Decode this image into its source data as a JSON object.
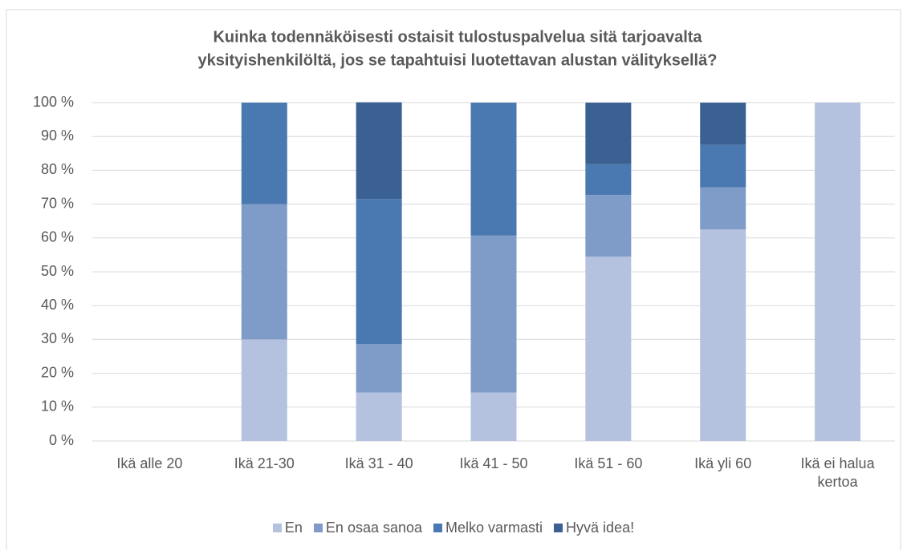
{
  "chart_data": {
    "type": "stacked_bar",
    "title": [
      "Kuinka todennäköisesti ostaisit tulostuspalvelua sitä tarjoavalta",
      "yksityishenkilöltä, jos se tapahtuisi luotettavan alustan välityksellä?"
    ],
    "categories": [
      "Ikä alle 20",
      "Ikä 21-30",
      "Ikä 31 - 40",
      "Ikä 41 - 50",
      "Ikä 51 - 60",
      "Ikä yli 60",
      "Ikä ei halua kertoa"
    ],
    "series": [
      {
        "name": "En",
        "color": "#b4c2df",
        "values": [
          0,
          30,
          14.3,
          14.3,
          54.5,
          62.5,
          100
        ]
      },
      {
        "name": "En osaa sanoa",
        "color": "#7f9cc9",
        "values": [
          0,
          40,
          14.3,
          46.4,
          18.2,
          12.5,
          0
        ]
      },
      {
        "name": "Melko varmasti",
        "color": "#4a78b0",
        "values": [
          0,
          30,
          42.9,
          39.3,
          9.1,
          12.5,
          0
        ]
      },
      {
        "name": "Hyvä idea!",
        "color": "#3a6192",
        "values": [
          0,
          0,
          28.6,
          0,
          18.2,
          12.5,
          0
        ]
      }
    ],
    "ylim": [
      0,
      100
    ],
    "yticks": [
      {
        "value": 0,
        "label": "0 %"
      },
      {
        "value": 10,
        "label": "10 %"
      },
      {
        "value": 20,
        "label": "20 %"
      },
      {
        "value": 30,
        "label": "30 %"
      },
      {
        "value": 40,
        "label": "40 %"
      },
      {
        "value": 50,
        "label": "50 %"
      },
      {
        "value": 60,
        "label": "60 %"
      },
      {
        "value": 70,
        "label": "70 %"
      },
      {
        "value": 80,
        "label": "80 %"
      },
      {
        "value": 90,
        "label": "90 %"
      },
      {
        "value": 100,
        "label": "100 %"
      }
    ],
    "grid": true,
    "legend": "bottom"
  }
}
